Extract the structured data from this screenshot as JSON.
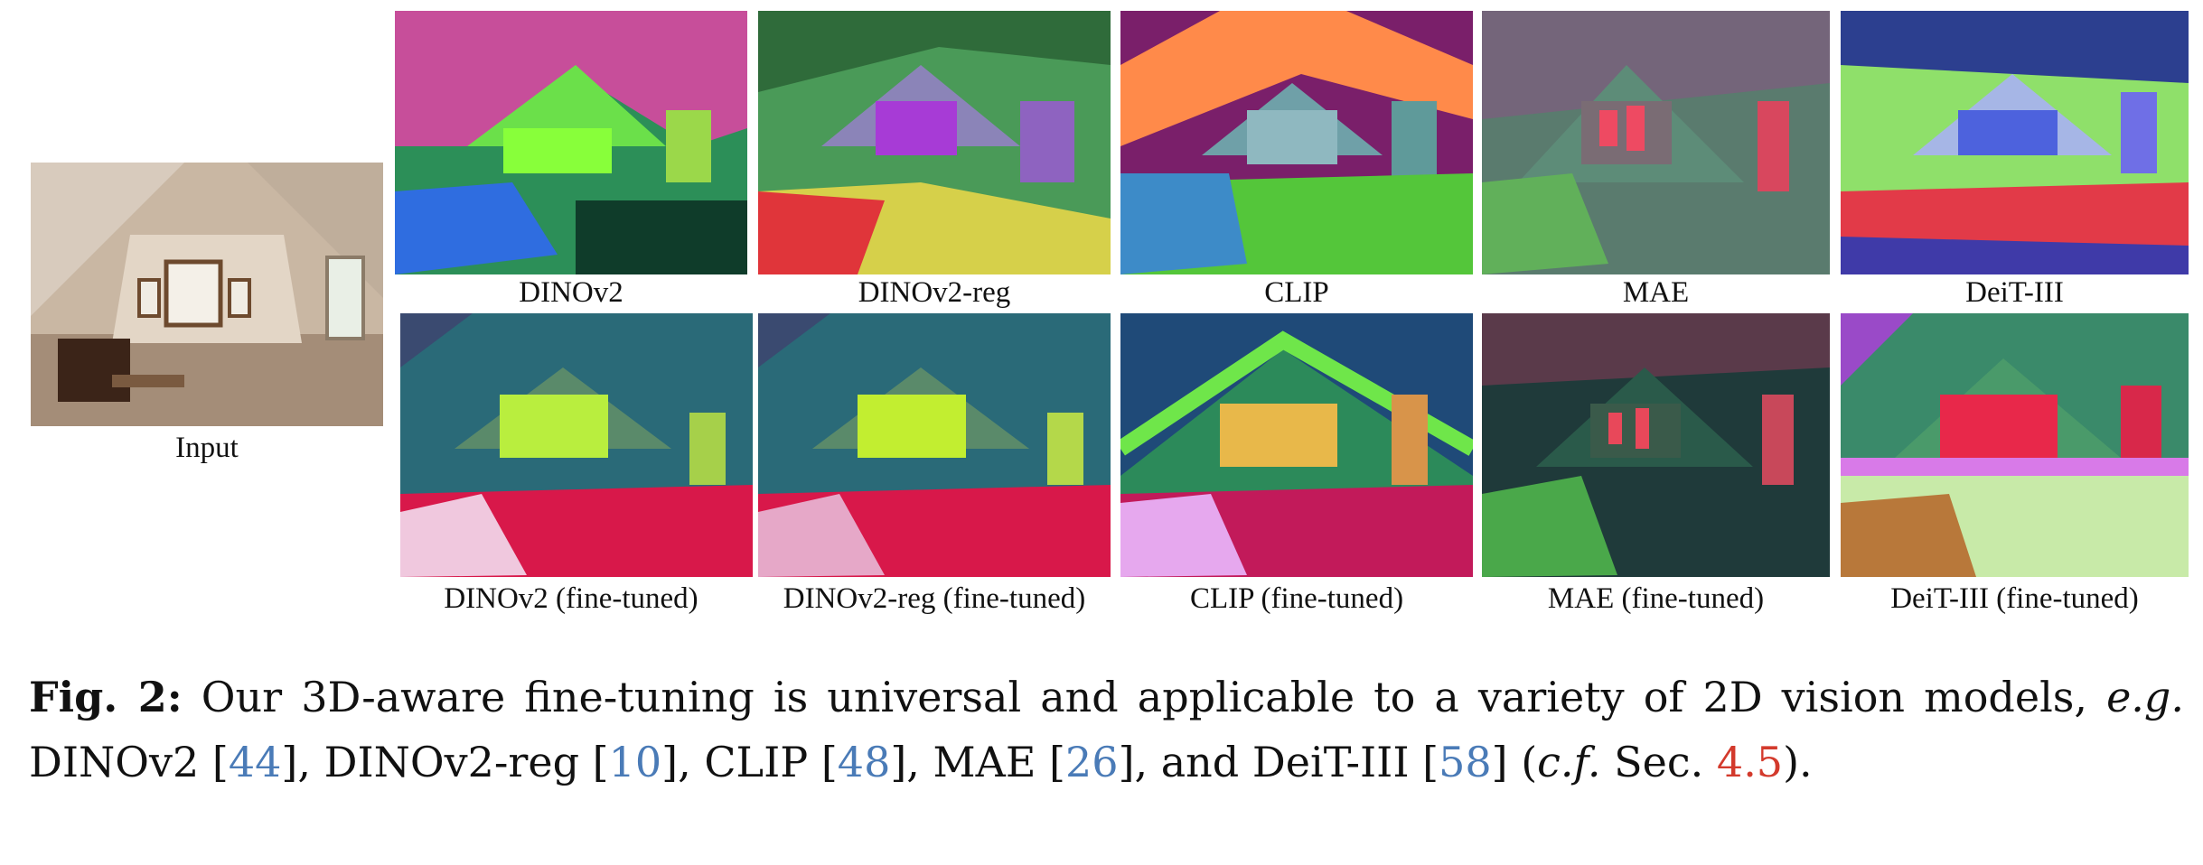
{
  "figure": {
    "input": {
      "label": "Input"
    },
    "row1": [
      {
        "label": "DINOv2"
      },
      {
        "label": "DINOv2-reg"
      },
      {
        "label": "CLIP"
      },
      {
        "label": "MAE"
      },
      {
        "label": "DeiT-III"
      }
    ],
    "row2": [
      {
        "label": "DINOv2 (fine-tuned)"
      },
      {
        "label": "DINOv2-reg (fine-tuned)"
      },
      {
        "label": "CLIP (fine-tuned)"
      },
      {
        "label": "MAE (fine-tuned)"
      },
      {
        "label": "DeiT-III (fine-tuned)"
      }
    ]
  },
  "caption": {
    "fig_label": "Fig. 2:",
    "text_1": " Our 3D-aware fine-tuning is universal and applicable to a variety of 2D vision models, ",
    "eg": "e.g.",
    "text_2": " DINOv2 [",
    "ref_1": "44",
    "text_3": "], DINOv2-reg [",
    "ref_2": "10",
    "text_4": "], CLIP [",
    "ref_3": "48",
    "text_5": "], MAE [",
    "ref_4": "26",
    "text_6": "], and DeiT-III [",
    "ref_5": "58",
    "text_7": "] (",
    "cf": "c.f.",
    "text_8": " Sec. ",
    "sec_ref": "4.5",
    "text_9": ")."
  }
}
